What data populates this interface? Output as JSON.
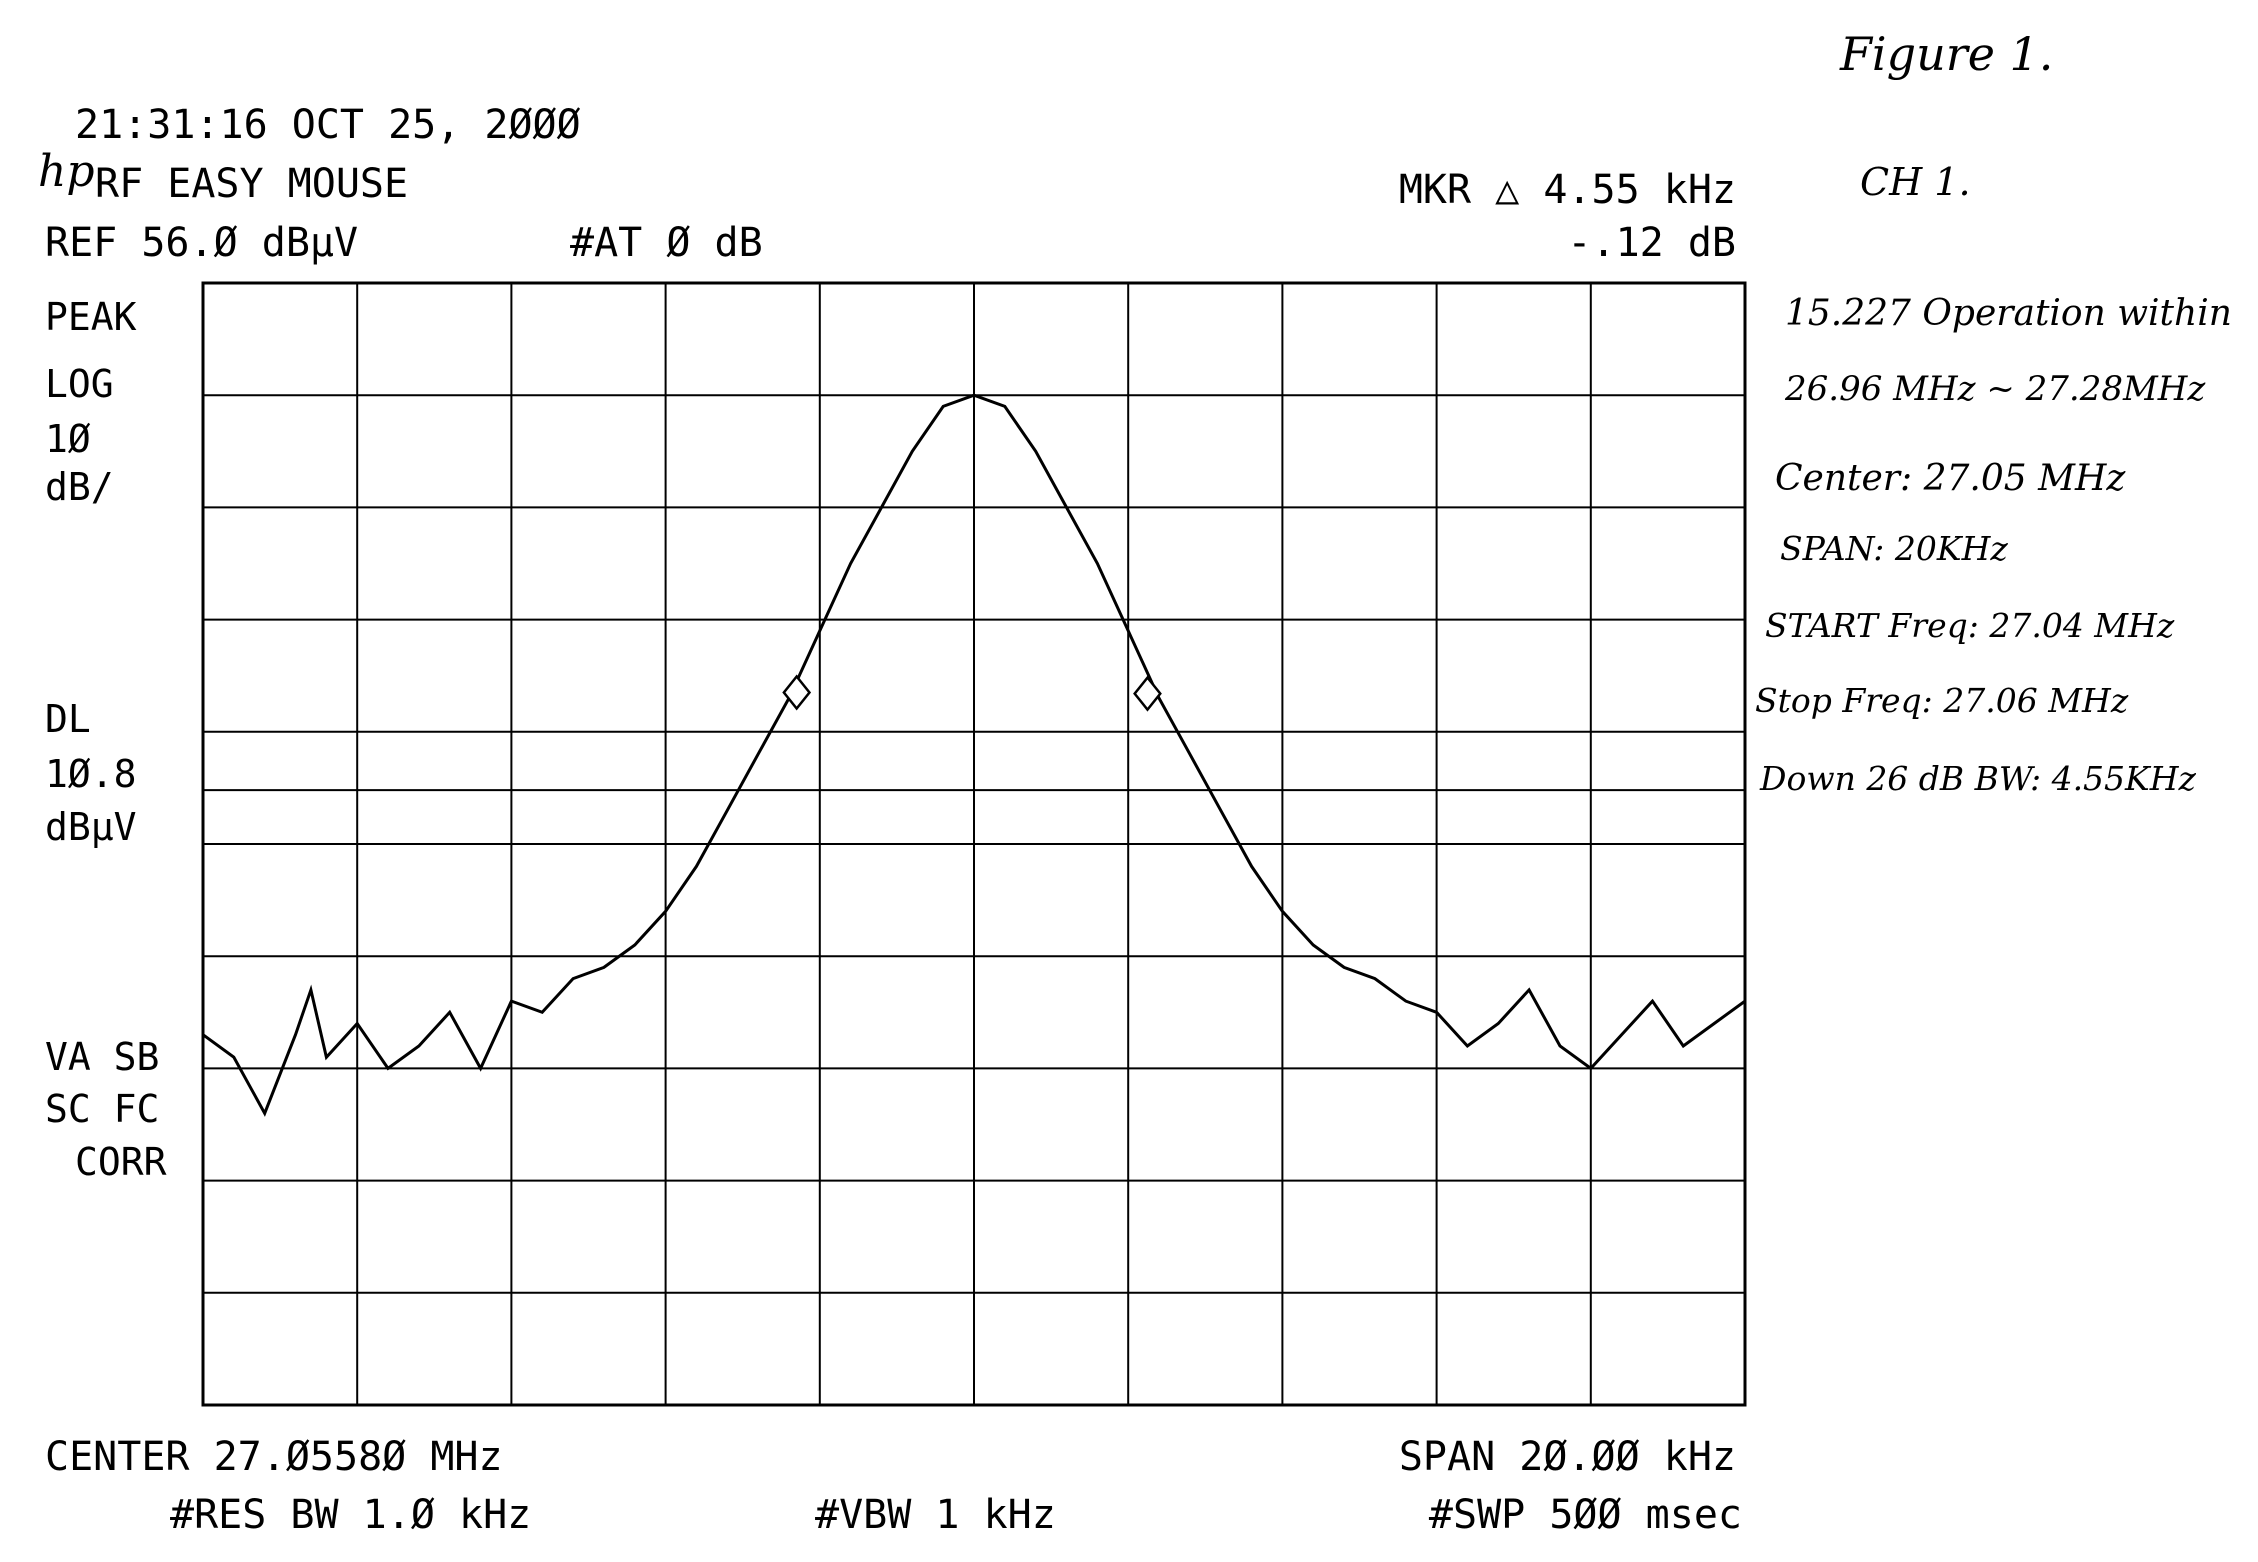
{
  "header": {
    "timestamp": "21:31:16 OCT 25, 2ØØØ",
    "mode": "RF EASY MOUSE",
    "logo": "hp",
    "ref": "REF 56.Ø dBµV",
    "attenuation": "#AT Ø dB",
    "marker_label": "MKR △ 4.55 kHz",
    "marker_value": "-.12 dB"
  },
  "left_panel": {
    "line1": "PEAK",
    "line2": "LOG",
    "line3": "1Ø",
    "line4": "dB/",
    "line5": "DL",
    "line6": "1Ø.8",
    "line7": "dBµV",
    "line8": "VA SB",
    "line9": "SC FC",
    "line10": "CORR"
  },
  "footer": {
    "center": "CENTER 27.Ø558Ø MHz",
    "span": "SPAN 2Ø.ØØ kHz",
    "rbw": "#RES BW 1.Ø kHz",
    "vbw": "#VBW 1 kHz",
    "sweep": "#SWP 5ØØ msec"
  },
  "notes": {
    "figure": "Figure 1.",
    "channel": "CH 1.",
    "line1": "15.227 Operation within",
    "line2": "26.96 MHz ~ 27.28MHz",
    "line3": "Center: 27.05 MHz",
    "line4": "SPAN: 20KHz",
    "line5": "START Freq: 27.04 MHz",
    "line6": "Stop Freq: 27.06 MHz",
    "line7": "Down 26 dB BW: 4.55KHz"
  },
  "chart_data": {
    "type": "line",
    "x_unit": "kHz offset from center",
    "y_unit": "dBµV",
    "xlim": [
      -10,
      10
    ],
    "ylim": [
      -44,
      56
    ],
    "x_divisions": 10,
    "y_divisions": 10,
    "display_line": 10.8,
    "grid": true,
    "series": [
      {
        "points": [
          [
            -10.0,
            -11
          ],
          [
            -9.6,
            -13
          ],
          [
            -9.2,
            -18
          ],
          [
            -8.8,
            -11
          ],
          [
            -8.6,
            -7
          ],
          [
            -8.4,
            -13
          ],
          [
            -8.0,
            -10
          ],
          [
            -7.6,
            -14
          ],
          [
            -7.2,
            -12
          ],
          [
            -6.8,
            -9
          ],
          [
            -6.4,
            -14
          ],
          [
            -6.0,
            -8
          ],
          [
            -5.6,
            -9
          ],
          [
            -5.2,
            -6
          ],
          [
            -4.8,
            -5
          ],
          [
            -4.4,
            -3
          ],
          [
            -4.0,
            0
          ],
          [
            -3.6,
            4
          ],
          [
            -3.2,
            9
          ],
          [
            -2.8,
            14
          ],
          [
            -2.4,
            19
          ],
          [
            -2.0,
            25
          ],
          [
            -1.6,
            31
          ],
          [
            -1.2,
            36
          ],
          [
            -0.8,
            41
          ],
          [
            -0.4,
            45
          ],
          [
            0.0,
            46
          ],
          [
            0.4,
            45
          ],
          [
            0.8,
            41
          ],
          [
            1.2,
            36
          ],
          [
            1.6,
            31
          ],
          [
            2.0,
            25
          ],
          [
            2.4,
            19
          ],
          [
            2.8,
            14
          ],
          [
            3.2,
            9
          ],
          [
            3.6,
            4
          ],
          [
            4.0,
            0
          ],
          [
            4.4,
            -3
          ],
          [
            4.8,
            -5
          ],
          [
            5.2,
            -6
          ],
          [
            5.6,
            -8
          ],
          [
            6.0,
            -9
          ],
          [
            6.4,
            -12
          ],
          [
            6.8,
            -10
          ],
          [
            7.2,
            -7
          ],
          [
            7.6,
            -12
          ],
          [
            8.0,
            -14
          ],
          [
            8.4,
            -11
          ],
          [
            8.8,
            -8
          ],
          [
            9.2,
            -12
          ],
          [
            9.6,
            -10
          ],
          [
            10.0,
            -8
          ]
        ]
      }
    ],
    "markers": [
      {
        "x": -2.3,
        "y": 19.5
      },
      {
        "x": 2.25,
        "y": 19.4
      }
    ]
  }
}
